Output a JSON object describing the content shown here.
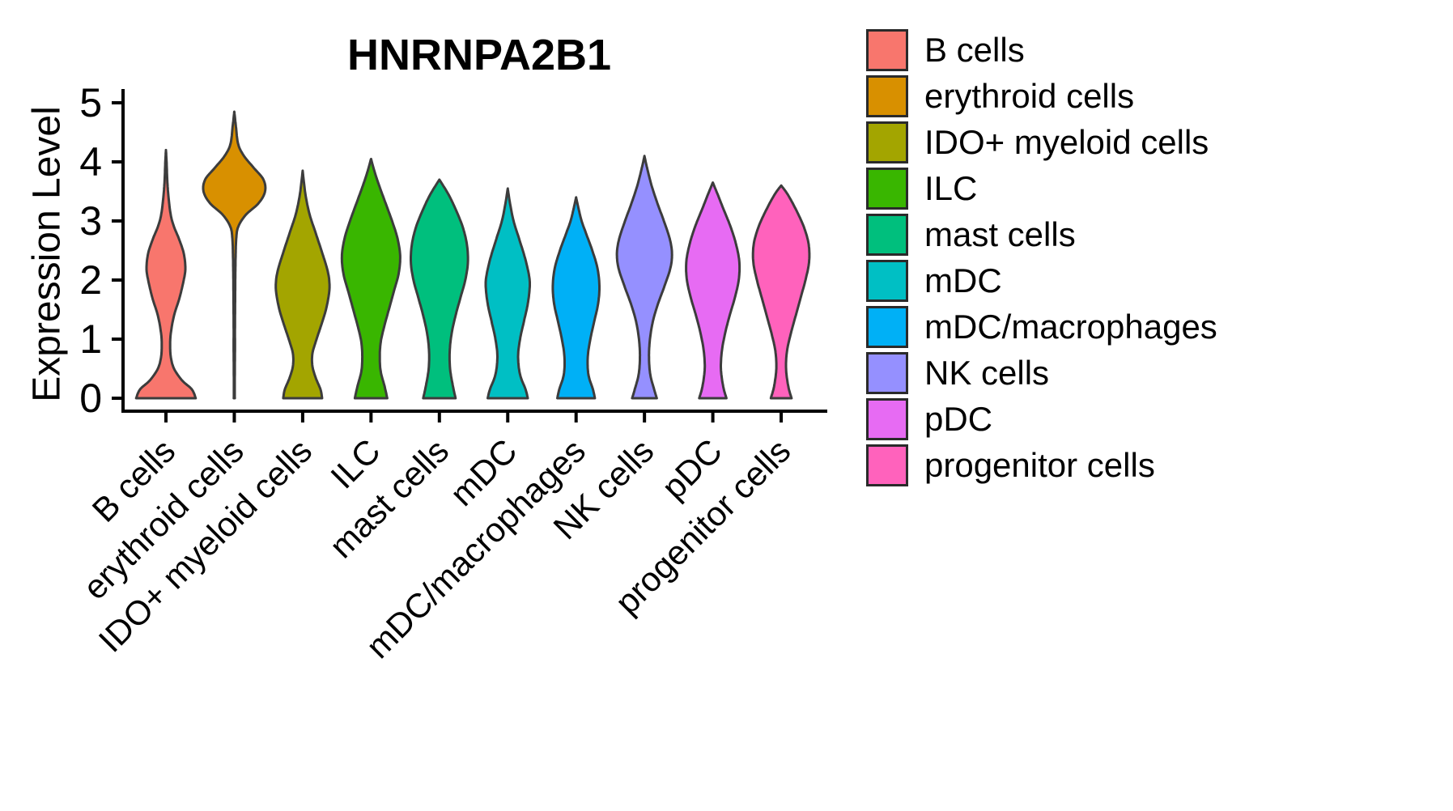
{
  "title": "HNRNPA2B1",
  "y_axis": {
    "label": "Expression Level",
    "ticks": [
      0,
      1,
      2,
      3,
      4,
      5
    ],
    "range": [
      0,
      5
    ]
  },
  "legend": {
    "items": [
      {
        "label": "B cells",
        "color": "#F8766D"
      },
      {
        "label": "erythroid cells",
        "color": "#D89000"
      },
      {
        "label": "IDO+ myeloid cells",
        "color": "#A3A500"
      },
      {
        "label": "ILC",
        "color": "#39B600"
      },
      {
        "label": "mast cells",
        "color": "#00BF7D"
      },
      {
        "label": "mDC",
        "color": "#00BFC4"
      },
      {
        "label": "mDC/macrophages",
        "color": "#00B0F6"
      },
      {
        "label": "NK cells",
        "color": "#9590FF"
      },
      {
        "label": "pDC",
        "color": "#E76BF3"
      },
      {
        "label": "progenitor cells",
        "color": "#FF62BC"
      }
    ]
  },
  "chart_data": {
    "type": "violin",
    "title": "HNRNPA2B1",
    "xlabel": "",
    "ylabel": "Expression Level",
    "ylim": [
      0,
      5
    ],
    "yticks": [
      0,
      1,
      2,
      3,
      4,
      5
    ],
    "grid": false,
    "legend_position": "right",
    "categories": [
      "B cells",
      "erythroid cells",
      "IDO+ myeloid cells",
      "ILC",
      "mast cells",
      "mDC",
      "mDC/macrophages",
      "NK cells",
      "pDC",
      "progenitor cells"
    ],
    "series": [
      {
        "name": "B cells",
        "color": "#F8766D",
        "expression_range": [
          0,
          4.2
        ],
        "peak_expression": 2.2,
        "density_profile": [
          [
            0,
            0.92
          ],
          [
            0.15,
            0.8
          ],
          [
            0.3,
            0.5
          ],
          [
            0.5,
            0.25
          ],
          [
            0.7,
            0.15
          ],
          [
            0.9,
            0.13
          ],
          [
            1.1,
            0.15
          ],
          [
            1.4,
            0.25
          ],
          [
            1.7,
            0.42
          ],
          [
            2.0,
            0.55
          ],
          [
            2.2,
            0.6
          ],
          [
            2.45,
            0.55
          ],
          [
            2.7,
            0.4
          ],
          [
            2.9,
            0.25
          ],
          [
            3.1,
            0.15
          ],
          [
            3.4,
            0.08
          ],
          [
            3.7,
            0.04
          ],
          [
            4.0,
            0.02
          ],
          [
            4.2,
            0.0
          ]
        ]
      },
      {
        "name": "erythroid cells",
        "color": "#D89000",
        "expression_range": [
          0,
          4.85
        ],
        "peak_expression": 3.6,
        "density_profile": [
          [
            0,
            0.015
          ],
          [
            0.4,
            0.015
          ],
          [
            0.8,
            0.02
          ],
          [
            1.2,
            0.02
          ],
          [
            1.6,
            0.025
          ],
          [
            2.0,
            0.03
          ],
          [
            2.4,
            0.04
          ],
          [
            2.7,
            0.06
          ],
          [
            2.9,
            0.12
          ],
          [
            3.1,
            0.35
          ],
          [
            3.3,
            0.75
          ],
          [
            3.5,
            0.95
          ],
          [
            3.7,
            0.9
          ],
          [
            3.9,
            0.6
          ],
          [
            4.1,
            0.3
          ],
          [
            4.3,
            0.12
          ],
          [
            4.6,
            0.05
          ],
          [
            4.85,
            0.0
          ]
        ]
      },
      {
        "name": "IDO+ myeloid cells",
        "color": "#A3A500",
        "expression_range": [
          0,
          3.85
        ],
        "peak_expression": 1.9,
        "density_profile": [
          [
            0,
            0.6
          ],
          [
            0.15,
            0.55
          ],
          [
            0.35,
            0.4
          ],
          [
            0.55,
            0.3
          ],
          [
            0.75,
            0.3
          ],
          [
            0.95,
            0.4
          ],
          [
            1.2,
            0.55
          ],
          [
            1.5,
            0.72
          ],
          [
            1.8,
            0.82
          ],
          [
            2.0,
            0.82
          ],
          [
            2.2,
            0.75
          ],
          [
            2.5,
            0.58
          ],
          [
            2.8,
            0.4
          ],
          [
            3.1,
            0.22
          ],
          [
            3.4,
            0.1
          ],
          [
            3.65,
            0.04
          ],
          [
            3.85,
            0.0
          ]
        ]
      },
      {
        "name": "ILC",
        "color": "#39B600",
        "expression_range": [
          0,
          4.05
        ],
        "peak_expression": 2.4,
        "density_profile": [
          [
            0,
            0.5
          ],
          [
            0.2,
            0.42
          ],
          [
            0.45,
            0.3
          ],
          [
            0.7,
            0.27
          ],
          [
            0.95,
            0.3
          ],
          [
            1.2,
            0.4
          ],
          [
            1.5,
            0.55
          ],
          [
            1.8,
            0.7
          ],
          [
            2.1,
            0.85
          ],
          [
            2.4,
            0.9
          ],
          [
            2.7,
            0.82
          ],
          [
            3.0,
            0.65
          ],
          [
            3.3,
            0.45
          ],
          [
            3.6,
            0.25
          ],
          [
            3.85,
            0.1
          ],
          [
            4.05,
            0.0
          ]
        ]
      },
      {
        "name": "mast cells",
        "color": "#00BF7D",
        "expression_range": [
          0,
          3.7
        ],
        "peak_expression": 2.4,
        "density_profile": [
          [
            0,
            0.5
          ],
          [
            0.2,
            0.42
          ],
          [
            0.5,
            0.33
          ],
          [
            0.8,
            0.32
          ],
          [
            1.1,
            0.38
          ],
          [
            1.4,
            0.5
          ],
          [
            1.7,
            0.65
          ],
          [
            2.0,
            0.8
          ],
          [
            2.3,
            0.88
          ],
          [
            2.6,
            0.85
          ],
          [
            2.9,
            0.72
          ],
          [
            3.2,
            0.5
          ],
          [
            3.45,
            0.28
          ],
          [
            3.7,
            0.0
          ]
        ]
      },
      {
        "name": "mDC",
        "color": "#00BFC4",
        "expression_range": [
          0,
          3.55
        ],
        "peak_expression": 2.0,
        "density_profile": [
          [
            0,
            0.62
          ],
          [
            0.15,
            0.55
          ],
          [
            0.4,
            0.38
          ],
          [
            0.7,
            0.32
          ],
          [
            1.0,
            0.38
          ],
          [
            1.3,
            0.5
          ],
          [
            1.6,
            0.62
          ],
          [
            1.9,
            0.68
          ],
          [
            2.1,
            0.65
          ],
          [
            2.4,
            0.52
          ],
          [
            2.7,
            0.35
          ],
          [
            3.0,
            0.18
          ],
          [
            3.3,
            0.07
          ],
          [
            3.55,
            0.0
          ]
        ]
      },
      {
        "name": "mDC/macrophages",
        "color": "#00B0F6",
        "expression_range": [
          0,
          3.4
        ],
        "peak_expression": 1.9,
        "density_profile": [
          [
            0,
            0.58
          ],
          [
            0.15,
            0.52
          ],
          [
            0.4,
            0.38
          ],
          [
            0.7,
            0.36
          ],
          [
            1.0,
            0.44
          ],
          [
            1.3,
            0.56
          ],
          [
            1.6,
            0.68
          ],
          [
            1.9,
            0.72
          ],
          [
            2.2,
            0.66
          ],
          [
            2.5,
            0.5
          ],
          [
            2.8,
            0.3
          ],
          [
            3.0,
            0.17
          ],
          [
            3.2,
            0.08
          ],
          [
            3.4,
            0.0
          ]
        ]
      },
      {
        "name": "NK cells",
        "color": "#9590FF",
        "expression_range": [
          0,
          4.1
        ],
        "peak_expression": 2.45,
        "density_profile": [
          [
            0,
            0.38
          ],
          [
            0.15,
            0.3
          ],
          [
            0.4,
            0.18
          ],
          [
            0.7,
            0.14
          ],
          [
            1.0,
            0.17
          ],
          [
            1.3,
            0.26
          ],
          [
            1.6,
            0.42
          ],
          [
            1.9,
            0.62
          ],
          [
            2.2,
            0.8
          ],
          [
            2.45,
            0.85
          ],
          [
            2.7,
            0.78
          ],
          [
            3.0,
            0.6
          ],
          [
            3.3,
            0.4
          ],
          [
            3.6,
            0.22
          ],
          [
            3.9,
            0.08
          ],
          [
            4.1,
            0.0
          ]
        ]
      },
      {
        "name": "pDC",
        "color": "#E76BF3",
        "expression_range": [
          0,
          3.65
        ],
        "peak_expression": 2.3,
        "density_profile": [
          [
            0,
            0.42
          ],
          [
            0.2,
            0.32
          ],
          [
            0.5,
            0.25
          ],
          [
            0.8,
            0.28
          ],
          [
            1.1,
            0.38
          ],
          [
            1.4,
            0.52
          ],
          [
            1.7,
            0.68
          ],
          [
            2.0,
            0.8
          ],
          [
            2.3,
            0.82
          ],
          [
            2.6,
            0.72
          ],
          [
            2.9,
            0.55
          ],
          [
            3.2,
            0.33
          ],
          [
            3.45,
            0.15
          ],
          [
            3.65,
            0.0
          ]
        ]
      },
      {
        "name": "progenitor cells",
        "color": "#FF62BC",
        "expression_range": [
          0,
          3.6
        ],
        "peak_expression": 2.45,
        "density_profile": [
          [
            0,
            0.32
          ],
          [
            0.2,
            0.22
          ],
          [
            0.5,
            0.15
          ],
          [
            0.8,
            0.18
          ],
          [
            1.1,
            0.3
          ],
          [
            1.4,
            0.45
          ],
          [
            1.7,
            0.6
          ],
          [
            2.0,
            0.75
          ],
          [
            2.3,
            0.86
          ],
          [
            2.6,
            0.85
          ],
          [
            2.9,
            0.7
          ],
          [
            3.2,
            0.45
          ],
          [
            3.45,
            0.2
          ],
          [
            3.6,
            0.0
          ]
        ]
      }
    ]
  }
}
